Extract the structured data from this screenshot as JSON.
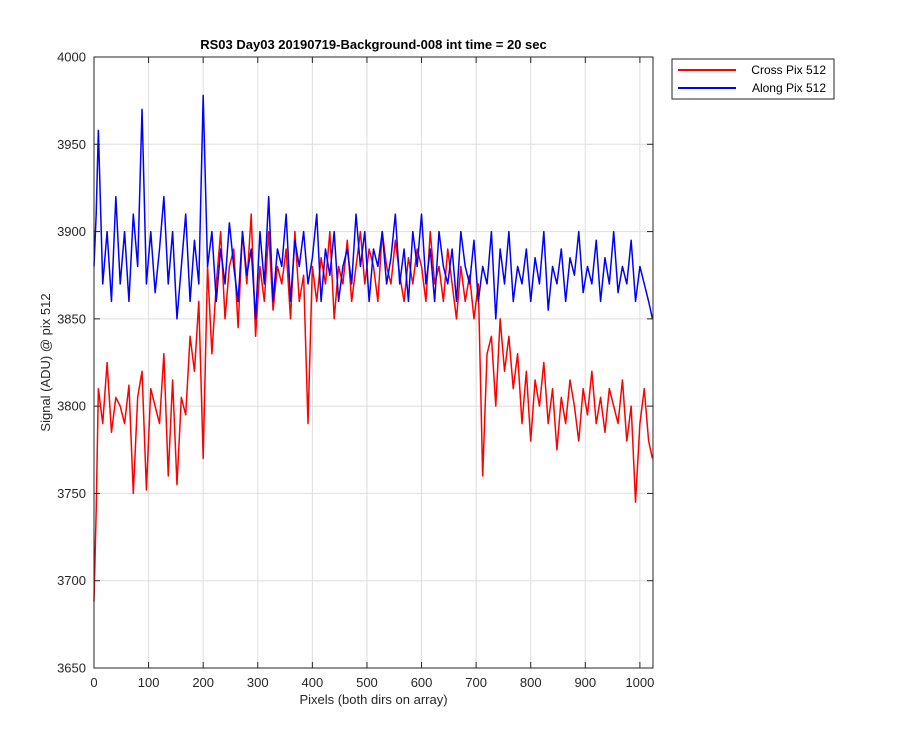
{
  "chart_data": {
    "type": "line",
    "title": "RS03 Day03 20190719-Background-008 int time = 20 sec",
    "xlabel": "Pixels (both dirs on array)",
    "ylabel": "Signal (ADU) @ pix 512",
    "xlim": [
      0,
      1024
    ],
    "ylim": [
      3650,
      4000
    ],
    "xticks": [
      0,
      100,
      200,
      300,
      400,
      500,
      600,
      700,
      800,
      900,
      1000
    ],
    "yticks": [
      3650,
      3700,
      3750,
      3800,
      3850,
      3900,
      3950,
      4000
    ],
    "grid": true,
    "legend_position": "outside-top-right",
    "series": [
      {
        "name": "Cross Pix 512",
        "color": "#ff0000",
        "x": [
          0,
          4,
          8,
          16,
          24,
          32,
          40,
          48,
          56,
          64,
          72,
          80,
          88,
          96,
          104,
          112,
          120,
          128,
          136,
          144,
          152,
          160,
          168,
          176,
          184,
          192,
          200,
          208,
          216,
          224,
          232,
          240,
          248,
          256,
          264,
          272,
          280,
          288,
          296,
          304,
          312,
          320,
          328,
          336,
          344,
          352,
          360,
          368,
          376,
          384,
          392,
          400,
          408,
          416,
          424,
          432,
          440,
          448,
          456,
          464,
          472,
          480,
          488,
          496,
          504,
          512,
          520,
          528,
          536,
          544,
          552,
          560,
          568,
          576,
          584,
          592,
          600,
          608,
          616,
          624,
          632,
          640,
          648,
          656,
          664,
          672,
          680,
          688,
          696,
          704,
          712,
          720,
          728,
          736,
          744,
          752,
          760,
          768,
          776,
          784,
          792,
          800,
          808,
          816,
          824,
          832,
          840,
          848,
          856,
          864,
          872,
          880,
          888,
          896,
          904,
          912,
          920,
          928,
          936,
          944,
          952,
          960,
          968,
          976,
          984,
          992,
          1000,
          1008,
          1016,
          1023
        ],
        "values": [
          3688,
          3740,
          3810,
          3790,
          3825,
          3785,
          3805,
          3800,
          3790,
          3812,
          3750,
          3805,
          3820,
          3752,
          3810,
          3800,
          3790,
          3830,
          3760,
          3815,
          3755,
          3805,
          3795,
          3840,
          3820,
          3860,
          3770,
          3880,
          3830,
          3870,
          3900,
          3850,
          3880,
          3890,
          3845,
          3900,
          3870,
          3910,
          3840,
          3880,
          3860,
          3900,
          3855,
          3880,
          3870,
          3890,
          3850,
          3900,
          3860,
          3875,
          3790,
          3880,
          3860,
          3885,
          3870,
          3900,
          3850,
          3880,
          3870,
          3895,
          3860,
          3880,
          3900,
          3870,
          3890,
          3880,
          3860,
          3900,
          3880,
          3870,
          3895,
          3875,
          3860,
          3885,
          3870,
          3890,
          3880,
          3860,
          3900,
          3870,
          3880,
          3860,
          3890,
          3870,
          3850,
          3880,
          3860,
          3875,
          3850,
          3870,
          3760,
          3830,
          3840,
          3800,
          3850,
          3820,
          3840,
          3810,
          3830,
          3790,
          3820,
          3780,
          3815,
          3800,
          3825,
          3790,
          3810,
          3775,
          3805,
          3790,
          3815,
          3800,
          3780,
          3810,
          3795,
          3820,
          3790,
          3805,
          3785,
          3810,
          3800,
          3790,
          3815,
          3780,
          3800,
          3745,
          3790,
          3810,
          3780,
          3770
        ]
      },
      {
        "name": "Along Pix 512",
        "color": "#0000ff",
        "x": [
          0,
          4,
          8,
          16,
          24,
          32,
          40,
          48,
          56,
          64,
          72,
          80,
          88,
          96,
          104,
          112,
          120,
          128,
          136,
          144,
          152,
          160,
          168,
          176,
          184,
          192,
          200,
          208,
          216,
          224,
          232,
          240,
          248,
          256,
          264,
          272,
          280,
          288,
          296,
          304,
          312,
          320,
          328,
          336,
          344,
          352,
          360,
          368,
          376,
          384,
          392,
          400,
          408,
          416,
          424,
          432,
          440,
          448,
          456,
          464,
          472,
          480,
          488,
          496,
          504,
          512,
          520,
          528,
          536,
          544,
          552,
          560,
          568,
          576,
          584,
          592,
          600,
          608,
          616,
          624,
          632,
          640,
          648,
          656,
          664,
          672,
          680,
          688,
          696,
          704,
          712,
          720,
          728,
          736,
          744,
          752,
          760,
          768,
          776,
          784,
          792,
          800,
          808,
          816,
          824,
          832,
          840,
          848,
          856,
          864,
          872,
          880,
          888,
          896,
          904,
          912,
          920,
          928,
          936,
          944,
          952,
          960,
          968,
          976,
          984,
          992,
          1000,
          1008,
          1016,
          1023
        ],
        "values": [
          3880,
          3910,
          3958,
          3870,
          3900,
          3860,
          3920,
          3870,
          3900,
          3860,
          3910,
          3880,
          3970,
          3870,
          3900,
          3865,
          3890,
          3920,
          3870,
          3900,
          3850,
          3880,
          3910,
          3860,
          3895,
          3870,
          3978,
          3880,
          3900,
          3860,
          3890,
          3870,
          3905,
          3880,
          3860,
          3900,
          3875,
          3890,
          3850,
          3900,
          3870,
          3920,
          3860,
          3890,
          3880,
          3910,
          3860,
          3895,
          3880,
          3900,
          3870,
          3885,
          3910,
          3860,
          3890,
          3875,
          3900,
          3860,
          3880,
          3890,
          3870,
          3910,
          3880,
          3900,
          3860,
          3890,
          3880,
          3900,
          3870,
          3885,
          3910,
          3870,
          3890,
          3860,
          3900,
          3880,
          3910,
          3870,
          3890,
          3860,
          3900,
          3880,
          3870,
          3890,
          3860,
          3900,
          3880,
          3870,
          3895,
          3860,
          3880,
          3870,
          3900,
          3850,
          3890,
          3870,
          3900,
          3860,
          3880,
          3870,
          3890,
          3860,
          3885,
          3870,
          3900,
          3855,
          3880,
          3870,
          3890,
          3860,
          3885,
          3875,
          3900,
          3865,
          3880,
          3870,
          3895,
          3860,
          3885,
          3870,
          3900,
          3865,
          3880,
          3870,
          3895,
          3860,
          3880,
          3870,
          3860,
          3850
        ]
      }
    ]
  }
}
